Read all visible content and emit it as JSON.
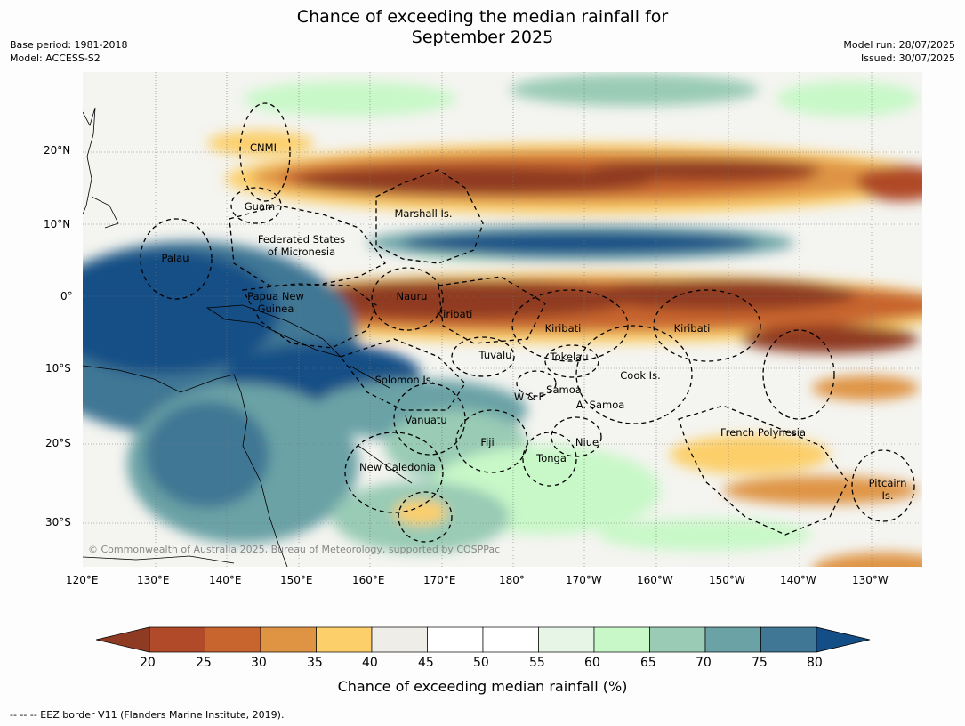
{
  "header": {
    "title_line1": "Chance of exceeding the median rainfall for",
    "title_line2": "September 2025",
    "base_period": "Base period: 1981-2018",
    "model": "Model: ACCESS-S2",
    "model_run": "Model run: 28/07/2025",
    "issued": "Issued: 30/07/2025"
  },
  "map": {
    "lon_ticks": [
      "120°E",
      "130°E",
      "140°E",
      "150°E",
      "160°E",
      "170°E",
      "180°",
      "170°W",
      "160°W",
      "150°W",
      "140°W",
      "130°W"
    ],
    "lat_ticks": [
      "20°N",
      "10°N",
      "0°",
      "10°S",
      "20°S",
      "30°S"
    ],
    "copyright": "© Commonwealth of Australia 2025, Bureau of Meteorology, supported by COSPPac",
    "regions": [
      {
        "id": "cnmi",
        "name": "CNMI"
      },
      {
        "id": "guam",
        "name": "Guam"
      },
      {
        "id": "marshall",
        "name": "Marshall Is."
      },
      {
        "id": "fsm1",
        "name": "Federated States"
      },
      {
        "id": "fsm2",
        "name": "of Micronesia"
      },
      {
        "id": "palau",
        "name": "Palau"
      },
      {
        "id": "png1",
        "name": "Papua New"
      },
      {
        "id": "png2",
        "name": "Guinea"
      },
      {
        "id": "nauru",
        "name": "Nauru"
      },
      {
        "id": "kiribati1",
        "name": "Kiribati"
      },
      {
        "id": "kiribati2",
        "name": "Kiribati"
      },
      {
        "id": "kiribati3",
        "name": "Kiribati"
      },
      {
        "id": "tuvalu",
        "name": "Tuvalu"
      },
      {
        "id": "tokelau",
        "name": "Tokelau"
      },
      {
        "id": "cook",
        "name": "Cook Is."
      },
      {
        "id": "solomon",
        "name": "Solomon Is."
      },
      {
        "id": "wf",
        "name": "W & F"
      },
      {
        "id": "samoa",
        "name": "Samoa"
      },
      {
        "id": "asamoa",
        "name": "A. Samoa"
      },
      {
        "id": "vanuatu",
        "name": "Vanuatu"
      },
      {
        "id": "fiji",
        "name": "Fiji"
      },
      {
        "id": "niue",
        "name": "Niue"
      },
      {
        "id": "tonga",
        "name": "Tonga"
      },
      {
        "id": "newcal",
        "name": "New Caledonia"
      },
      {
        "id": "frpoly",
        "name": "French Polynesia"
      },
      {
        "id": "pitcairn1",
        "name": "Pitcairn"
      },
      {
        "id": "pitcairn2",
        "name": "Is."
      }
    ]
  },
  "colorbar": {
    "title": "Chance of exceeding median rainfall (%)",
    "ticks": [
      "20",
      "25",
      "30",
      "35",
      "40",
      "45",
      "50",
      "55",
      "60",
      "65",
      "70",
      "75",
      "80"
    ],
    "colors": [
      "#b04a28",
      "#c8652f",
      "#df9444",
      "#fccf6a",
      "#efede8",
      "#ffffff",
      "#ffffff",
      "#e6f5e6",
      "#c8f8c8",
      "#99cbb5",
      "#6aa2a6",
      "#3f7794"
    ],
    "low_extend_color": "#8f3a22",
    "high_extend_color": "#134f86"
  },
  "footnote": "--  --  -- EEZ border V11 (Flanders Marine Institute, 2019)."
}
